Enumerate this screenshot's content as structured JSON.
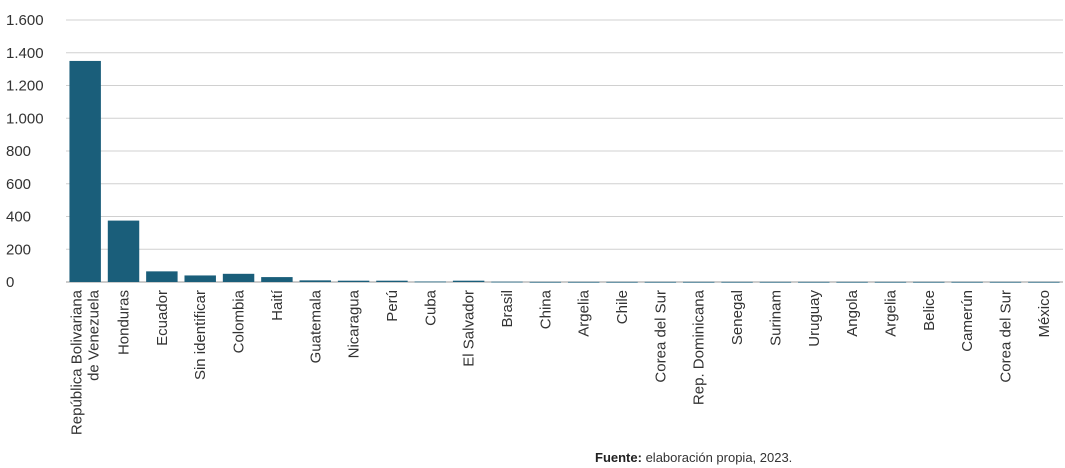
{
  "chart_data": {
    "type": "bar",
    "categories": [
      "República Bolivariana de Venezuela",
      "Honduras",
      "Ecuador",
      "Sin identificar",
      "Colombia",
      "Haití",
      "Guatemala",
      "Nicaragua",
      "Perú",
      "Cuba",
      "El Salvador",
      "Brasil",
      "China",
      "Argelia",
      "Chile",
      "Corea del Sur",
      "Rep. Dominicana",
      "Senegal",
      "Surinam",
      "Uruguay",
      "Angola",
      "Argelia",
      "Belice",
      "Camerún",
      "Corea del Sur",
      "México"
    ],
    "category_lines": [
      [
        "República Bolivariana",
        "de Venezuela"
      ],
      [
        "Honduras"
      ],
      [
        "Ecuador"
      ],
      [
        "Sin identificar"
      ],
      [
        "Colombia"
      ],
      [
        "Haití"
      ],
      [
        "Guatemala"
      ],
      [
        "Nicaragua"
      ],
      [
        "Perú"
      ],
      [
        "Cuba"
      ],
      [
        "El Salvador"
      ],
      [
        "Brasil"
      ],
      [
        "China"
      ],
      [
        "Argelia"
      ],
      [
        "Chile"
      ],
      [
        "Corea del Sur"
      ],
      [
        "Rep. Dominicana"
      ],
      [
        "Senegal"
      ],
      [
        "Surinam"
      ],
      [
        "Uruguay"
      ],
      [
        "Angola"
      ],
      [
        "Argelia"
      ],
      [
        "Belice"
      ],
      [
        "Camerún"
      ],
      [
        "Corea del Sur"
      ],
      [
        "México"
      ]
    ],
    "values": [
      1350,
      375,
      65,
      40,
      50,
      30,
      10,
      8,
      8,
      3,
      8,
      2,
      1,
      1,
      1,
      1,
      1,
      1,
      1,
      1,
      1,
      1,
      1,
      1,
      1,
      1
    ],
    "ylim": [
      0,
      1600
    ],
    "yticks": [
      0,
      200,
      400,
      600,
      800,
      1000,
      1200,
      1400,
      1600
    ],
    "ytick_labels": [
      "0",
      "200",
      "400",
      "600",
      "800",
      "1.000",
      "1.200",
      "1.400",
      "1.600"
    ],
    "grid": true,
    "bar_color": "#1a5e7a",
    "grid_color": "#d0d0d0",
    "title": "",
    "xlabel": "",
    "ylabel": ""
  },
  "source_note": {
    "label": "Fuente:",
    "text": "elaboración propia, 2023."
  }
}
